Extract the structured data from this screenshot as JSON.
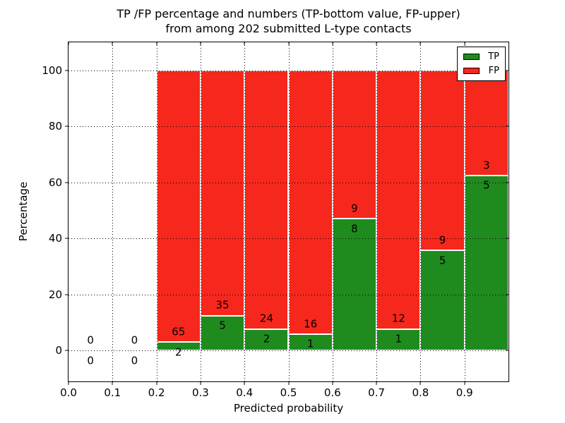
{
  "title": {
    "line1": "TP /FP percentage and numbers (TP-bottom value, FP-upper)",
    "line2": "from among 202 submitted L-type contacts"
  },
  "chart_data": {
    "type": "bar",
    "stacked": true,
    "title": "TP /FP percentage and numbers (TP-bottom value, FP-upper)\nfrom among 202 submitted L-type contacts",
    "xlabel": "Predicted probability",
    "ylabel": "Percentage",
    "xlim": [
      0.0,
      1.0
    ],
    "ylim": [
      -11,
      110
    ],
    "grid": true,
    "legend_position": "upper right",
    "total_contacts": 202,
    "colors": {
      "tp": "#1f8b1f",
      "fp": "#f6271c"
    },
    "series": [
      {
        "name": "TP",
        "color": "#1f8b1f"
      },
      {
        "name": "FP",
        "color": "#f6271c"
      }
    ],
    "xticks": [
      {
        "value": 0.0,
        "label": "0.0"
      },
      {
        "value": 0.1,
        "label": "0.1"
      },
      {
        "value": 0.2,
        "label": "0.2"
      },
      {
        "value": 0.3,
        "label": "0.3"
      },
      {
        "value": 0.4,
        "label": "0.4"
      },
      {
        "value": 0.5,
        "label": "0.5"
      },
      {
        "value": 0.6,
        "label": "0.6"
      },
      {
        "value": 0.7,
        "label": "0.7"
      },
      {
        "value": 0.8,
        "label": "0.8"
      },
      {
        "value": 0.9,
        "label": "0.9"
      }
    ],
    "yticks": [
      {
        "value": 0,
        "label": "0"
      },
      {
        "value": 20,
        "label": "20"
      },
      {
        "value": 40,
        "label": "40"
      },
      {
        "value": 60,
        "label": "60"
      },
      {
        "value": 80,
        "label": "80"
      },
      {
        "value": 100,
        "label": "100"
      }
    ],
    "bins": [
      {
        "range": [
          0.0,
          0.1
        ],
        "tp": 0,
        "fp": 0,
        "tp_pct": 0,
        "fp_pct": 0
      },
      {
        "range": [
          0.1,
          0.2
        ],
        "tp": 0,
        "fp": 0,
        "tp_pct": 0,
        "fp_pct": 0
      },
      {
        "range": [
          0.2,
          0.3
        ],
        "tp": 2,
        "fp": 65,
        "tp_pct": 3.0,
        "fp_pct": 97.0
      },
      {
        "range": [
          0.3,
          0.4
        ],
        "tp": 5,
        "fp": 35,
        "tp_pct": 12.5,
        "fp_pct": 87.5
      },
      {
        "range": [
          0.4,
          0.5
        ],
        "tp": 2,
        "fp": 24,
        "tp_pct": 7.7,
        "fp_pct": 92.3
      },
      {
        "range": [
          0.5,
          0.6
        ],
        "tp": 1,
        "fp": 16,
        "tp_pct": 5.9,
        "fp_pct": 94.1
      },
      {
        "range": [
          0.6,
          0.7
        ],
        "tp": 8,
        "fp": 9,
        "tp_pct": 47.1,
        "fp_pct": 52.9
      },
      {
        "range": [
          0.7,
          0.8
        ],
        "tp": 1,
        "fp": 12,
        "tp_pct": 7.7,
        "fp_pct": 92.3
      },
      {
        "range": [
          0.8,
          0.9
        ],
        "tp": 5,
        "fp": 9,
        "tp_pct": 35.7,
        "fp_pct": 64.3
      },
      {
        "range": [
          0.9,
          1.0
        ],
        "tp": 5,
        "fp": 3,
        "tp_pct": 62.5,
        "fp_pct": 37.5
      }
    ]
  }
}
